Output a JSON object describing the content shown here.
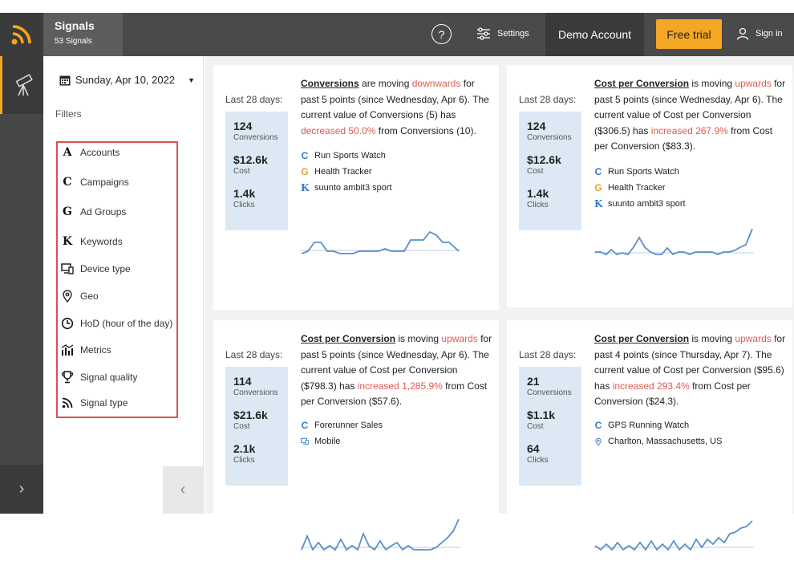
{
  "header": {
    "app_title": "Signals",
    "signal_count": "53 Signals",
    "help_symbol": "?",
    "settings_label": "Settings",
    "account_label": "Demo Account",
    "free_trial_label": "Free trial",
    "sign_in_label": "Sign in"
  },
  "sidebar": {
    "date": "Sunday, Apr 10, 2022",
    "filters_label": "Filters",
    "filters": [
      {
        "label": "Accounts",
        "icon": "A"
      },
      {
        "label": "Campaigns",
        "icon": "C"
      },
      {
        "label": "Ad Groups",
        "icon": "G"
      },
      {
        "label": "Keywords",
        "icon": "K"
      },
      {
        "label": "Device type",
        "icon": "device-icon"
      },
      {
        "label": "Geo",
        "icon": "pin-icon"
      },
      {
        "label": "HoD (hour of the day)",
        "icon": "clock-icon"
      },
      {
        "label": "Metrics",
        "icon": "metrics-icon"
      },
      {
        "label": "Signal quality",
        "icon": "trophy-icon"
      },
      {
        "label": "Signal type",
        "icon": "signal-icon"
      }
    ]
  },
  "colors": {
    "accent": "#f5a623",
    "red": "#e05a4f",
    "stat_bg": "#dce9f5",
    "spark_line": "#5b8ec9",
    "tag_c": "#3a78c9",
    "tag_g": "#e8a23a",
    "tag_k": "#3a78c9"
  },
  "cards": [
    {
      "period": "Last 28 days:",
      "stats": [
        {
          "value": "124",
          "label": "Conversions"
        },
        {
          "value": "$12.6k",
          "label": "Cost"
        },
        {
          "value": "1.4k",
          "label": "Clicks"
        }
      ],
      "metric": "Conversions",
      "verb": " are moving ",
      "direction": "downwards",
      "rest1": " for past 5 points (since Wednesday, Apr 6). The current value of Conversions (5) has ",
      "change": "decreased 50.0%",
      "rest2": " from Conversions (10).",
      "tags": [
        {
          "letter": "C",
          "text": "Run Sports Watch"
        },
        {
          "letter": "G",
          "text": "Health Tracker"
        },
        {
          "letter": "K",
          "text": "suunto ambit3 sport"
        }
      ]
    },
    {
      "period": "Last 28 days:",
      "stats": [
        {
          "value": "124",
          "label": "Conversions"
        },
        {
          "value": "$12.6k",
          "label": "Cost"
        },
        {
          "value": "1.4k",
          "label": "Clicks"
        }
      ],
      "metric": "Cost per Conversion",
      "verb": " is moving ",
      "direction": "upwards",
      "rest1": " for past 5 points (since Wednesday, Apr 6). The current value of Cost per Conversion ($306.5) has ",
      "change": "increased 267.9%",
      "rest2": " from Cost per Conversion ($83.3).",
      "tags": [
        {
          "letter": "C",
          "text": "Run Sports Watch"
        },
        {
          "letter": "G",
          "text": "Health Tracker"
        },
        {
          "letter": "K",
          "text": "suunto ambit3 sport"
        }
      ]
    },
    {
      "period": "Last 28 days:",
      "stats": [
        {
          "value": "114",
          "label": "Conversions"
        },
        {
          "value": "$21.6k",
          "label": "Cost"
        },
        {
          "value": "2.1k",
          "label": "Clicks"
        }
      ],
      "metric": "Cost per Conversion",
      "verb": " is moving ",
      "direction": "upwards",
      "rest1": " for past 5 points (since Wednesday, Apr 6). The current value of Cost per Conversion ($798.3) has ",
      "change": "increased 1,285.9%",
      "rest2": " from Cost per Conversion ($57.6).",
      "tags": [
        {
          "letter": "C",
          "text": "Forerunner Sales"
        },
        {
          "letter": "device",
          "text": "Mobile"
        }
      ]
    },
    {
      "period": "Last 28 days:",
      "stats": [
        {
          "value": "21",
          "label": "Conversions"
        },
        {
          "value": "$1.1k",
          "label": "Cost"
        },
        {
          "value": "64",
          "label": "Clicks"
        }
      ],
      "metric": "Cost per Conversion",
      "verb": " is moving ",
      "direction": "upwards",
      "rest1": " for past 4 points (since Thursday, Apr 7). The current value of Cost per Conversion ($95.6) has ",
      "change": "increased 293.4%",
      "rest2": " from Cost per Conversion ($24.3).",
      "tags": [
        {
          "letter": "C",
          "text": "GPS Running Watch"
        },
        {
          "letter": "pin",
          "text": "Charlton, Massachusetts, US"
        }
      ]
    }
  ]
}
